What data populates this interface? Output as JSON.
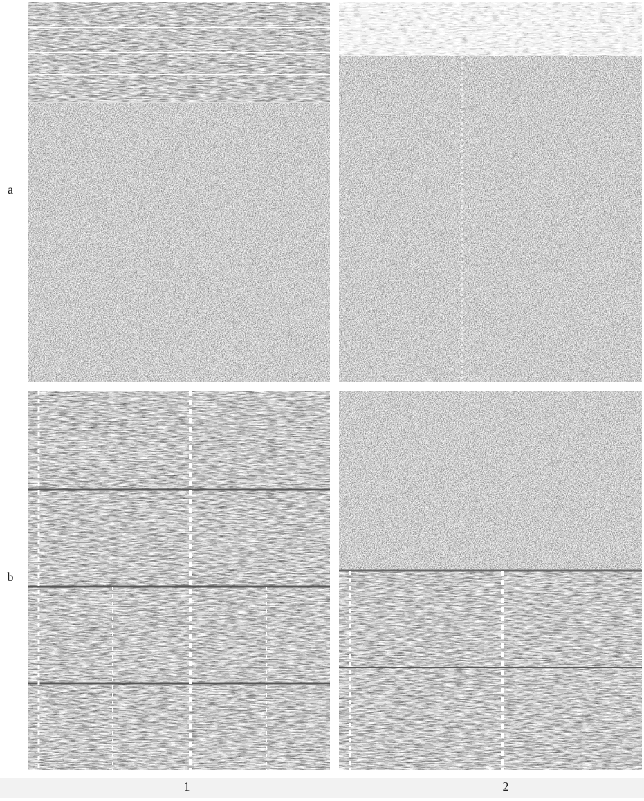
{
  "row_labels": [
    "a",
    "b"
  ],
  "column_labels": [
    "1",
    "2"
  ]
}
